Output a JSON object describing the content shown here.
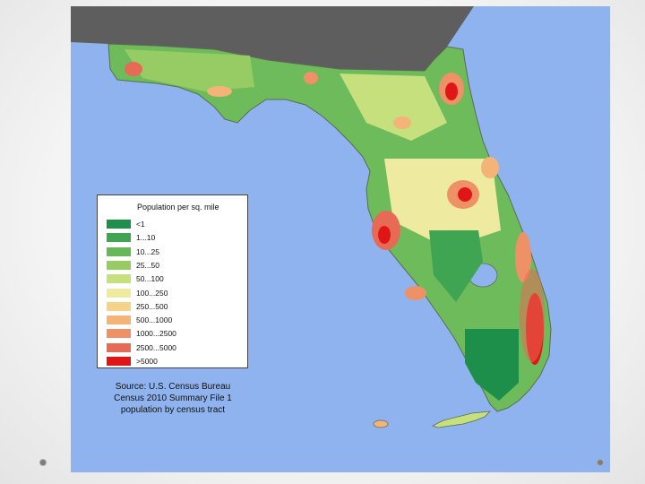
{
  "colors": {
    "ocean": "#8fb3ee",
    "land_outside": "#5e5e5e",
    "county_border": "#5d6b52"
  },
  "legend": {
    "title": "Population per sq. mile",
    "items": [
      {
        "label": "<1",
        "color": "#1e8f4a"
      },
      {
        "label": "1...10",
        "color": "#3fa552"
      },
      {
        "label": "10...25",
        "color": "#67b85a"
      },
      {
        "label": "25...50",
        "color": "#97cc64"
      },
      {
        "label": "50...100",
        "color": "#c6e07e"
      },
      {
        "label": "100...250",
        "color": "#eeeaa0"
      },
      {
        "label": "250...500",
        "color": "#f6d28a"
      },
      {
        "label": "500...1000",
        "color": "#f4b477"
      },
      {
        "label": "1000...2500",
        "color": "#ef9166"
      },
      {
        "label": "2500...5000",
        "color": "#e76a55"
      },
      {
        "label": ">5000",
        "color": "#e01616"
      }
    ]
  },
  "source": {
    "line1": "Source: U.S. Census Bureau",
    "line2": "Census 2010 Summary File 1",
    "line3": "population by census tract"
  }
}
